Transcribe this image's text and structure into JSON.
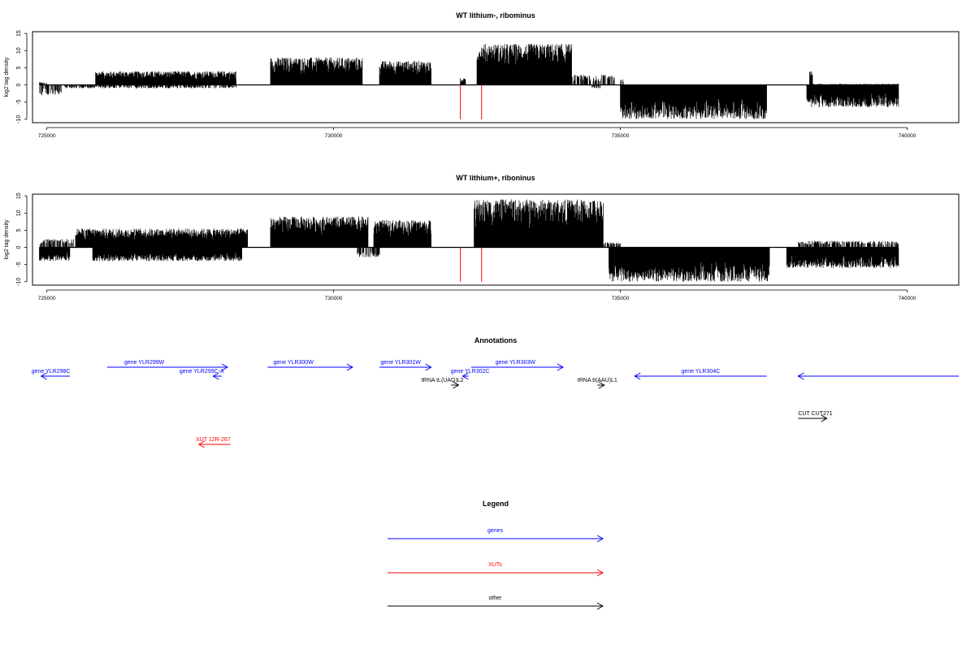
{
  "chart_data": [
    {
      "type": "bar",
      "title": "WT lithium-, ribominus",
      "ylabel": "log2 tag density",
      "xlim": [
        724750,
        740900
      ],
      "ylim": [
        -11,
        15.5
      ],
      "xticks": [
        725000,
        730000,
        735000,
        740000
      ],
      "yticks": [
        -10,
        -5,
        0,
        5,
        10,
        15
      ],
      "baseline": {
        "x": [
          724870,
          739850
        ]
      },
      "grid": false,
      "legend": "none",
      "envelope_positive": [
        {
          "x": [
            724870,
            725000
          ],
          "max": 0.8
        },
        {
          "x": [
            725850,
            728300
          ],
          "max": 4
        },
        {
          "x": [
            728900,
            730500
          ],
          "max": 8
        },
        {
          "x": [
            730800,
            731700
          ],
          "max": 7
        },
        {
          "x": [
            732200,
            732300
          ],
          "max": 2
        },
        {
          "x": [
            732500,
            734150
          ],
          "max": 12
        },
        {
          "x": [
            734150,
            734900
          ],
          "max": 3
        },
        {
          "x": [
            735000,
            735050
          ],
          "max": 2
        },
        {
          "x": [
            738300,
            738350
          ],
          "max": 4
        },
        {
          "x": [
            738350,
            739850
          ],
          "max": 0.3
        }
      ],
      "envelope_negative": [
        {
          "x": [
            724870,
            725250
          ],
          "min": -3
        },
        {
          "x": [
            725300,
            728300
          ],
          "min": -1
        },
        {
          "x": [
            734500,
            734650
          ],
          "min": -1
        },
        {
          "x": [
            735000,
            737550
          ],
          "min": -10
        },
        {
          "x": [
            738250,
            739850
          ],
          "min": -6.5
        }
      ],
      "markers_red": [
        {
          "x": 732210,
          "y0": -10,
          "y1": 0
        },
        {
          "x": 732580,
          "y0": -10,
          "y1": 0
        }
      ]
    },
    {
      "type": "bar",
      "title": "WT lithium+, riboninus",
      "ylabel": "log2 tag density",
      "xlim": [
        724750,
        740900
      ],
      "ylim": [
        -11,
        15.5
      ],
      "xticks": [
        725000,
        730000,
        735000,
        740000
      ],
      "yticks": [
        -10,
        -5,
        0,
        5,
        10,
        15
      ],
      "baseline": {
        "x": [
          724870,
          739850
        ]
      },
      "grid": false,
      "legend": "none",
      "envelope_positive": [
        {
          "x": [
            724870,
            725500
          ],
          "max": 2.5
        },
        {
          "x": [
            725500,
            728500
          ],
          "max": 5.5
        },
        {
          "x": [
            728900,
            730600
          ],
          "max": 9
        },
        {
          "x": [
            730700,
            731700
          ],
          "max": 8
        },
        {
          "x": [
            732450,
            734700
          ],
          "max": 14
        },
        {
          "x": [
            734700,
            735000
          ],
          "max": 1.5
        },
        {
          "x": [
            738100,
            739850
          ],
          "max": 2
        }
      ],
      "envelope_negative": [
        {
          "x": [
            724870,
            725400
          ],
          "min": -4
        },
        {
          "x": [
            725800,
            728400
          ],
          "min": -4
        },
        {
          "x": [
            730400,
            730800
          ],
          "min": -3
        },
        {
          "x": [
            734800,
            737600
          ],
          "min": -10
        },
        {
          "x": [
            737900,
            739850
          ],
          "min": -6
        }
      ],
      "markers_red": [
        {
          "x": 732210,
          "y0": -10,
          "y1": 0
        },
        {
          "x": 732580,
          "y0": -10,
          "y1": 0
        }
      ]
    }
  ],
  "annotations": {
    "title": "Annotations",
    "items": [
      {
        "label": "gene YLR298C",
        "color": "#0000ff",
        "x0": 725400,
        "x1": 724900,
        "dir": "left",
        "row": 1,
        "tx": 725070
      },
      {
        "label": "gene YLR299W",
        "color": "#0000ff",
        "x0": 726050,
        "x1": 728150,
        "dir": "right",
        "row": 0,
        "tx": 726700
      },
      {
        "label": "gene YLR299C-A",
        "color": "#0000ff",
        "x0": 728050,
        "x1": 727900,
        "dir": "left",
        "row": 1,
        "tx": 727700
      },
      {
        "label": "gene YLR300W",
        "color": "#0000ff",
        "x0": 728850,
        "x1": 730330,
        "dir": "right",
        "row": 0,
        "tx": 729300
      },
      {
        "label": "gene YLR301W",
        "color": "#0000ff",
        "x0": 730800,
        "x1": 731700,
        "dir": "right",
        "row": 0,
        "tx": 731170
      },
      {
        "label": "gene YLR302C",
        "color": "#0000ff",
        "x0": 732350,
        "x1": 732250,
        "dir": "left",
        "row": 1,
        "tx": 732380
      },
      {
        "label": "gene YLR303W",
        "color": "#0000ff",
        "x0": 732400,
        "x1": 734000,
        "dir": "right",
        "row": 0,
        "tx": 733170
      },
      {
        "label": "gene YLR304C",
        "color": "#0000ff",
        "x0": 737550,
        "x1": 735250,
        "dir": "left",
        "row": 1,
        "tx": 736400
      },
      {
        "label": "",
        "color": "#0000ff",
        "x0": 740900,
        "x1": 738100,
        "dir": "left",
        "row": 1,
        "tx": 0
      },
      {
        "label": "tRNA tL(UAG)L2",
        "color": "#000000",
        "x0": 732050,
        "x1": 732180,
        "dir": "right",
        "row": 2,
        "tx": 731900
      },
      {
        "label": "tRNA tI(AAU)L1",
        "color": "#000000",
        "x0": 734600,
        "x1": 734720,
        "dir": "right",
        "row": 2,
        "tx": 734600
      },
      {
        "label": "CUT CUT271",
        "color": "#000000",
        "x0": 738100,
        "x1": 738600,
        "dir": "right",
        "row": 3,
        "tx": 738400
      },
      {
        "label": "XUT 12R-267",
        "color": "#ff0000",
        "x0": 728200,
        "x1": 727650,
        "dir": "left",
        "row": 4,
        "tx": 727900
      }
    ]
  },
  "legend": {
    "title": "Legend",
    "items": [
      {
        "label": "genes",
        "color": "#0000ff"
      },
      {
        "label": "XUTs",
        "color": "#ff0000"
      },
      {
        "label": "other",
        "color": "#000000"
      }
    ]
  }
}
